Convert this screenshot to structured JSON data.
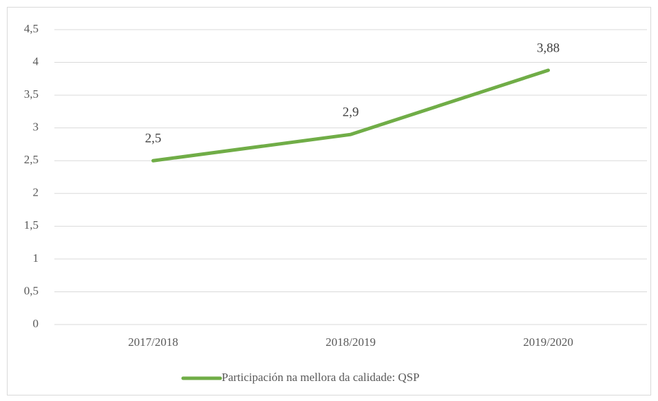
{
  "chart_data": {
    "type": "line",
    "categories": [
      "2017/2018",
      "2018/2019",
      "2019/2020"
    ],
    "series": [
      {
        "name": "Participación na mellora da calidade: QSP",
        "color": "#70ad47",
        "values": [
          2.5,
          2.9,
          3.88
        ],
        "value_labels": [
          "2,5",
          "2,9",
          "3,88"
        ]
      }
    ],
    "ylim": [
      0,
      4.5
    ],
    "yticks": [
      0,
      {
        "value": 0.5,
        "label": "0,5"
      },
      1,
      {
        "value": 1.5,
        "label": "1,5"
      },
      2,
      {
        "value": 2.5,
        "label": "2,5"
      },
      3,
      {
        "value": 3.5,
        "label": "3,5"
      },
      4,
      {
        "value": 4.5,
        "label": "4,5"
      }
    ],
    "grid": true,
    "legend": "bottom"
  }
}
